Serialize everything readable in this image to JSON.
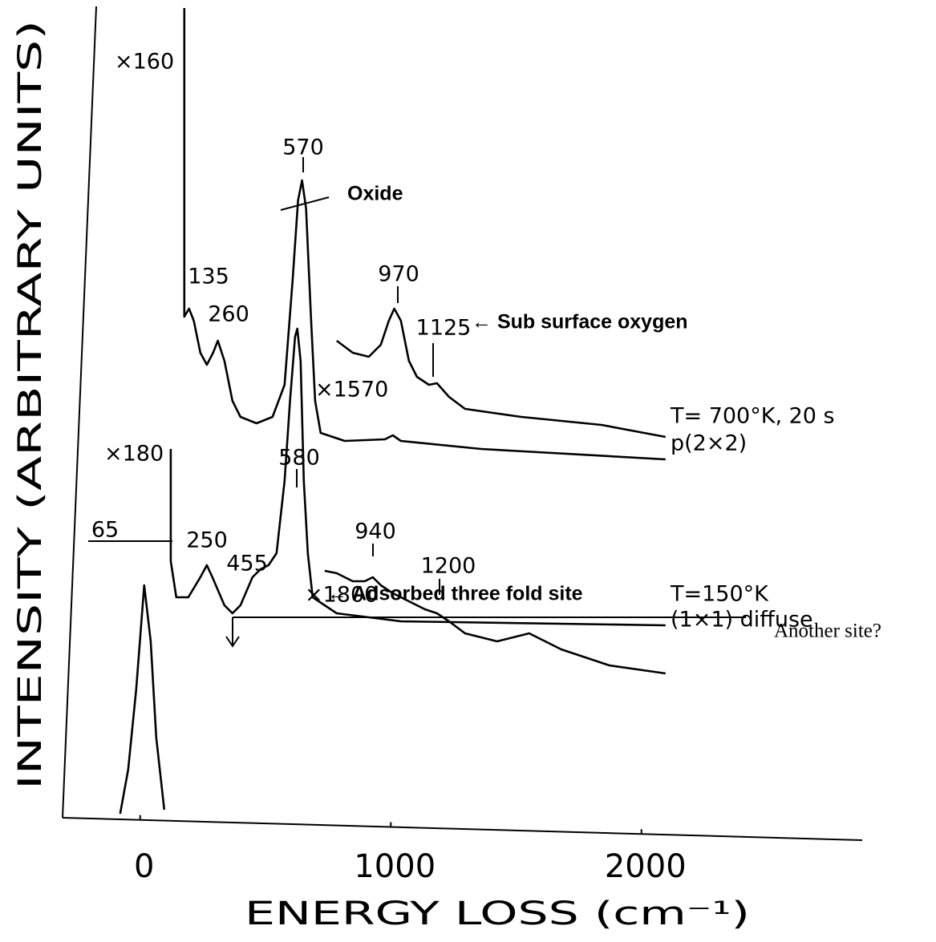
{
  "chart_data": {
    "type": "line",
    "x_label": "ENERGY LOSS (cm⁻¹)",
    "y_label": "INTENSITY (ARBITRARY UNITS)",
    "xlim": [
      -300,
      2900
    ],
    "xticks": [
      0,
      1000,
      2000
    ],
    "series": [
      {
        "color": "#000000",
        "x": [
          176,
          176,
          195,
          214,
          240,
          266,
          291,
          310,
          336,
          368,
          400,
          464,
          528,
          576,
          608,
          630,
          646,
          662,
          682,
          698,
          720,
          816,
          976,
          1008,
          1040,
          1360,
          2096
        ],
        "values": [
          101,
          62.5,
          63.5,
          62,
          58,
          56.5,
          58,
          59.5,
          57,
          52,
          50,
          49.2,
          50,
          54,
          67,
          77,
          79.5,
          76,
          62,
          52,
          48,
          47,
          47.2,
          47.7,
          47,
          46,
          44.7
        ]
      },
      {
        "color": "#000000",
        "x": [
          784,
          848,
          912,
          960,
          992,
          1014,
          1040,
          1072,
          1104,
          1152,
          1184,
          1232,
          1296,
          1520,
          1840,
          2096
        ],
        "values": [
          59.5,
          58,
          57.5,
          59,
          62,
          63.5,
          62,
          57,
          55,
          54,
          54.2,
          52.5,
          51,
          50,
          49,
          47.5
        ]
      },
      {
        "color": "#000000",
        "x": [
          -80,
          -48,
          -16,
          16,
          42,
          64,
          96
        ],
        "values": [
          0.5,
          6,
          16,
          29,
          22,
          10,
          1
        ]
      },
      {
        "color": "#000000",
        "x": [
          122,
          122,
          144,
          192,
          240,
          266,
          288,
          336,
          368,
          400,
          448,
          480,
          512,
          544,
          576,
          598,
          618,
          627,
          640,
          653,
          669,
          688,
          784,
          1040,
          2096
        ],
        "values": [
          46,
          32,
          27.5,
          27.5,
          30,
          31.5,
          30,
          26.5,
          25.5,
          26.5,
          30,
          31,
          31.5,
          33,
          42,
          52,
          60,
          61,
          57,
          42,
          33,
          27.5,
          25.5,
          24.5,
          24
        ]
      },
      {
        "color": "#000000",
        "x": [
          736,
          784,
          848,
          896,
          928,
          960,
          1008,
          1072,
          1136,
          1184,
          1232,
          1296,
          1424,
          1552,
          1680,
          1872,
          2096
        ],
        "values": [
          30.8,
          30.5,
          29.5,
          29.5,
          30,
          29,
          28,
          27,
          26,
          25.5,
          24.5,
          23,
          22,
          23,
          21,
          19,
          18
        ]
      }
    ],
    "peak_labels": [
      570,
      135,
      260,
      970,
      1125,
      580,
      65,
      250,
      455,
      940,
      1200
    ],
    "annotations": [
      "×160",
      "×1570",
      "Oxide",
      "← Sub surface oxygen",
      "T= 700°K, 20 s",
      "p(2×2)",
      "×180",
      "×1800",
      "← Adsorbed three fold site",
      "Another site?",
      "T=150°K",
      "(1×1) diffuse"
    ]
  }
}
